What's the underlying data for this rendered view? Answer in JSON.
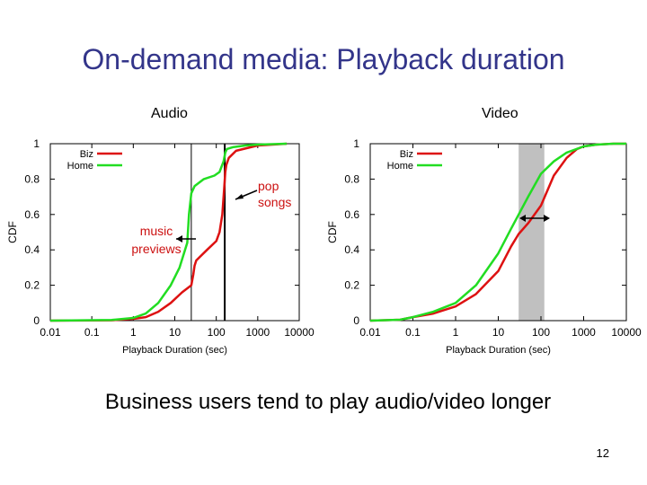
{
  "slide": {
    "title": "On-demand media: Playback duration",
    "caption": "Business users tend to play audio/video longer",
    "page_number": "12"
  },
  "chart_data": [
    {
      "type": "line",
      "title": "Audio",
      "xlabel": "Playback Duration (sec)",
      "ylabel": "CDF",
      "xscale": "log",
      "xlim": [
        0.01,
        10000
      ],
      "ylim": [
        0,
        1
      ],
      "x_ticks": [
        "0.01",
        "0.1",
        "1",
        "10",
        "100",
        "1000",
        "10000"
      ],
      "y_ticks": [
        "0",
        "0.2",
        "0.4",
        "0.6",
        "0.8",
        "1"
      ],
      "legend_position": "top-left",
      "series": [
        {
          "name": "Biz",
          "color": "#dd1111",
          "x": [
            0.01,
            0.3,
            1,
            2,
            4,
            8,
            15,
            25,
            28,
            30,
            33,
            40,
            60,
            100,
            120,
            140,
            155,
            165,
            175,
            200,
            300,
            1000,
            5000
          ],
          "y": [
            0,
            0.002,
            0.01,
            0.02,
            0.05,
            0.1,
            0.16,
            0.2,
            0.26,
            0.31,
            0.34,
            0.36,
            0.4,
            0.45,
            0.5,
            0.6,
            0.75,
            0.84,
            0.88,
            0.92,
            0.96,
            0.99,
            1.0
          ]
        },
        {
          "name": "Home",
          "color": "#22dd22",
          "x": [
            0.01,
            0.3,
            1,
            2,
            4,
            8,
            13,
            20,
            22,
            25,
            30,
            50,
            90,
            120,
            150,
            165,
            180,
            250,
            500,
            1000,
            5000
          ],
          "y": [
            0,
            0.004,
            0.015,
            0.04,
            0.1,
            0.2,
            0.3,
            0.44,
            0.6,
            0.72,
            0.76,
            0.8,
            0.82,
            0.84,
            0.9,
            0.95,
            0.97,
            0.98,
            0.99,
            0.995,
            1.0
          ]
        }
      ],
      "vlines": [
        25,
        160
      ],
      "annotations": [
        {
          "lines": [
            "pop",
            "songs"
          ],
          "color": "#cc1111"
        },
        {
          "lines": [
            "music",
            "previews"
          ],
          "color": "#cc1111"
        }
      ]
    },
    {
      "type": "line",
      "title": "Video",
      "xlabel": "Playback Duration (sec)",
      "ylabel": "CDF",
      "xscale": "log",
      "xlim": [
        0.01,
        10000
      ],
      "ylim": [
        0,
        1
      ],
      "x_ticks": [
        "0.01",
        "0.1",
        "1",
        "10",
        "100",
        "1000",
        "10000"
      ],
      "y_ticks": [
        "0",
        "0.2",
        "0.4",
        "0.6",
        "0.8",
        "1"
      ],
      "legend_position": "top-left",
      "series": [
        {
          "name": "Biz",
          "color": "#dd1111",
          "x": [
            0.01,
            0.05,
            0.1,
            0.3,
            1,
            3,
            10,
            20,
            30,
            50,
            100,
            200,
            400,
            700,
            1000,
            2000,
            5000,
            10000
          ],
          "y": [
            0,
            0.005,
            0.02,
            0.04,
            0.08,
            0.15,
            0.28,
            0.42,
            0.49,
            0.55,
            0.65,
            0.82,
            0.92,
            0.97,
            0.985,
            0.995,
            1.0,
            1.0
          ]
        },
        {
          "name": "Home",
          "color": "#22dd22",
          "x": [
            0.01,
            0.05,
            0.1,
            0.3,
            1,
            3,
            10,
            20,
            30,
            50,
            100,
            200,
            400,
            1000,
            2000,
            5000,
            10000
          ],
          "y": [
            0,
            0.005,
            0.02,
            0.05,
            0.1,
            0.2,
            0.38,
            0.52,
            0.6,
            0.7,
            0.83,
            0.9,
            0.95,
            0.985,
            0.995,
            1.0,
            1.0
          ]
        }
      ],
      "shaded_band": [
        30,
        120
      ],
      "shade_color": "#c0c0c0"
    }
  ]
}
